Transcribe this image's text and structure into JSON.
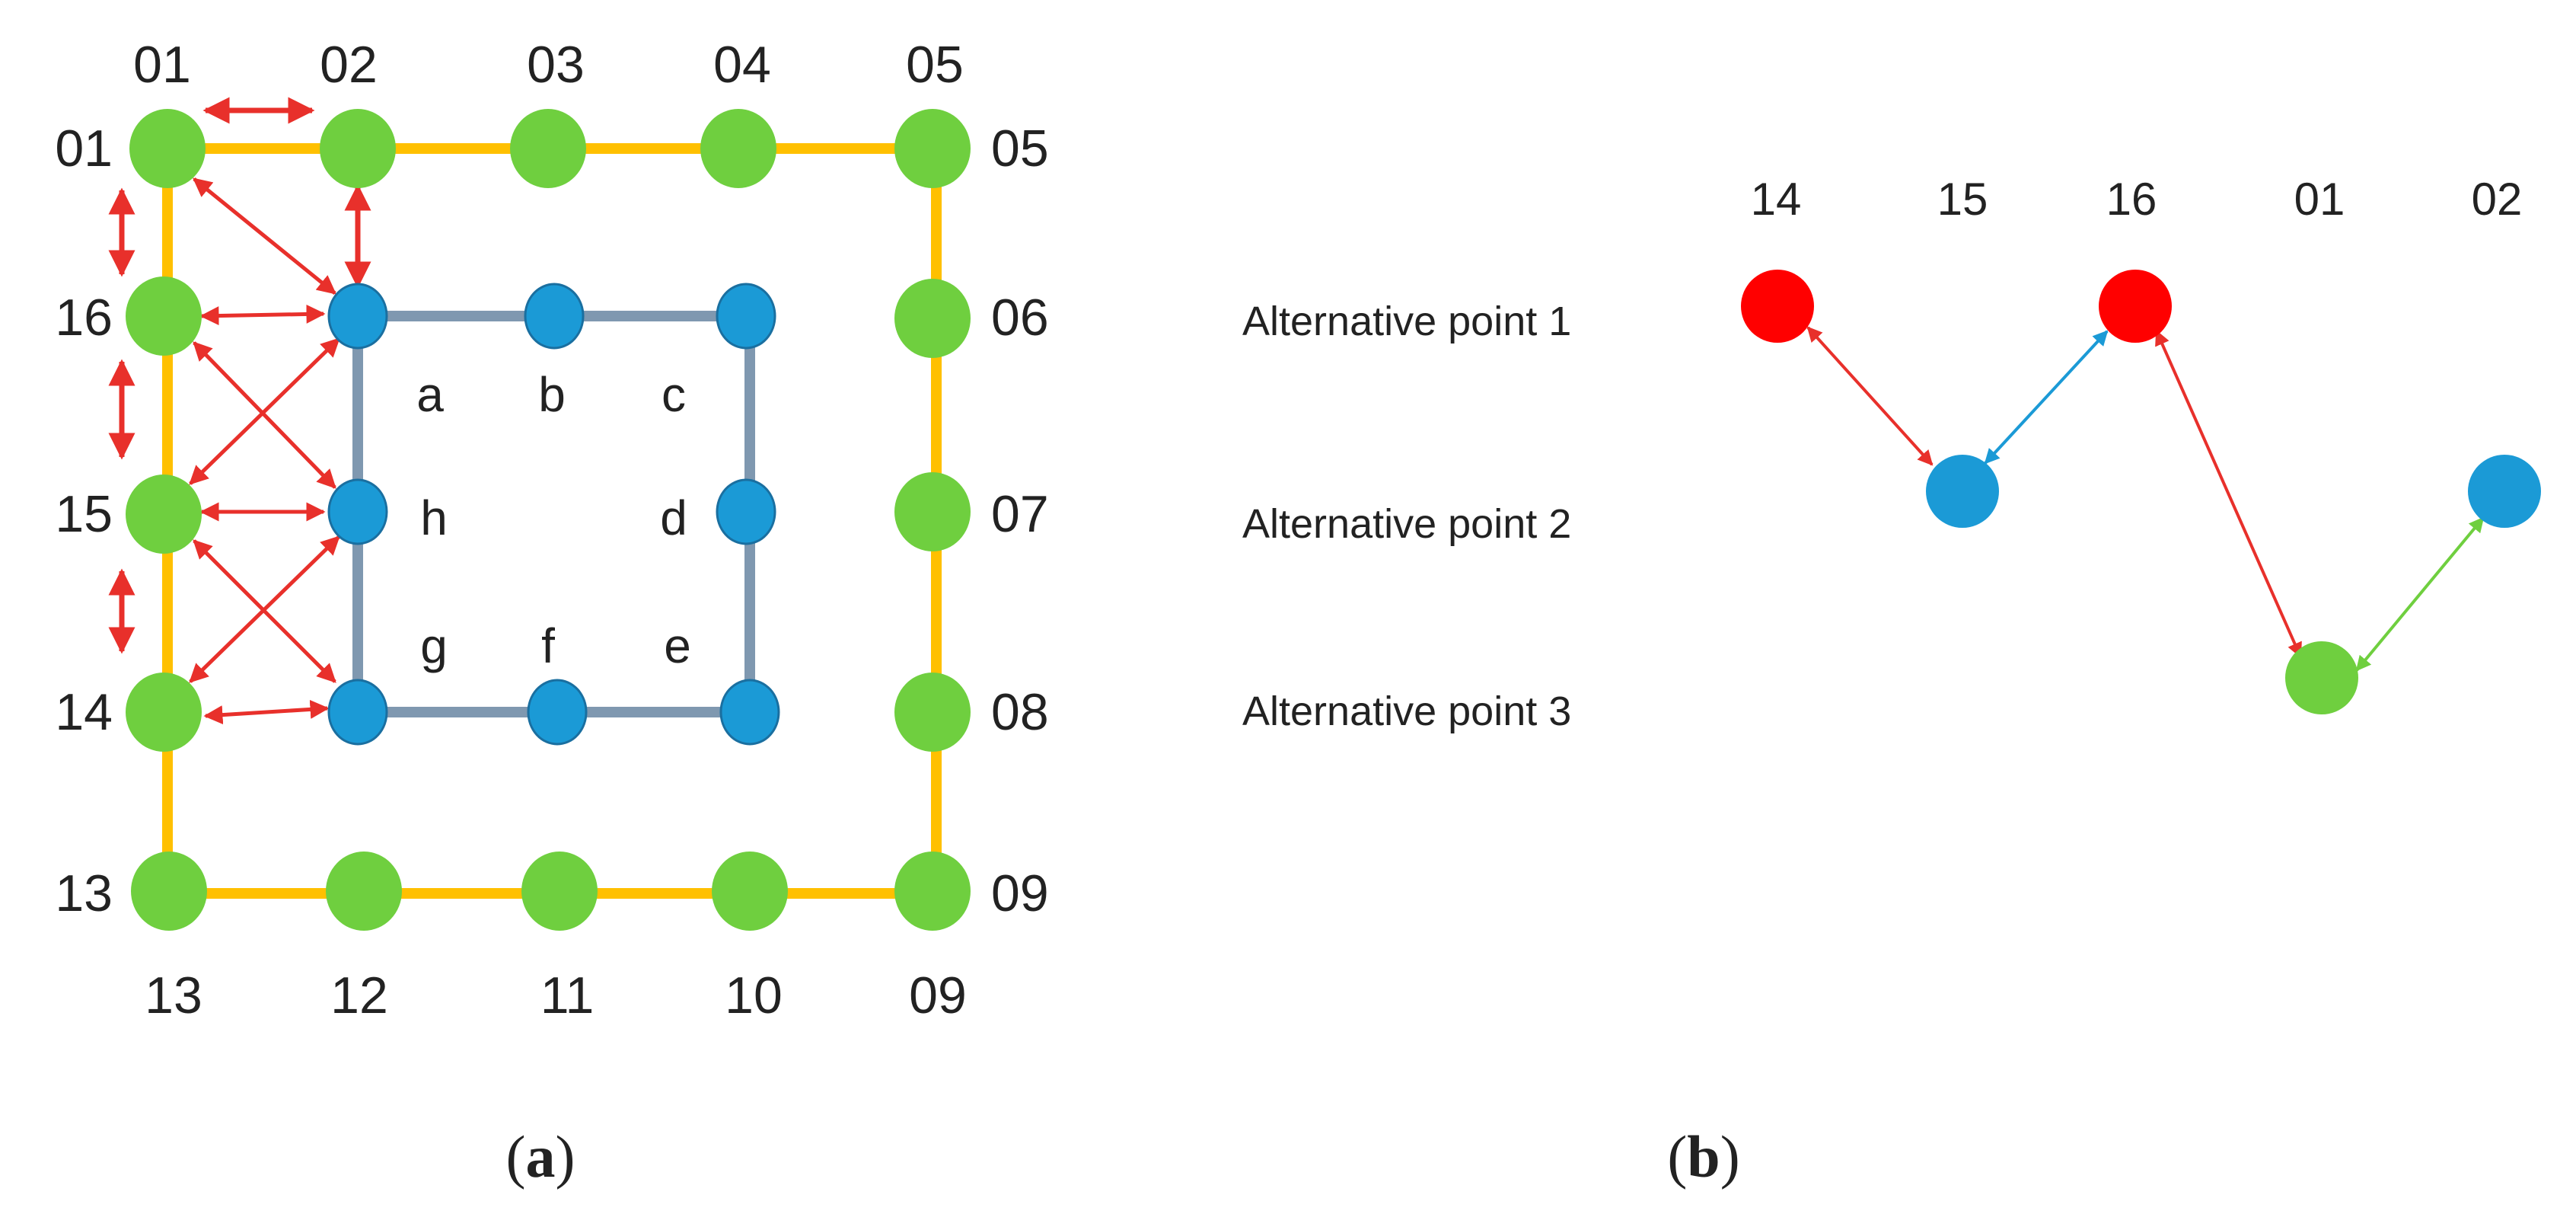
{
  "panel_a": {
    "caption": {
      "open": "(",
      "letter": "a",
      "close": ")"
    },
    "top_labels": [
      "01",
      "02",
      "03",
      "04",
      "05"
    ],
    "left_labels": [
      "01",
      "16",
      "15",
      "14",
      "13"
    ],
    "right_labels": [
      "05",
      "06",
      "07",
      "08",
      "09"
    ],
    "bottom_labels": [
      "13",
      "12",
      "11",
      "10",
      "09"
    ],
    "inner_labels": [
      "a",
      "b",
      "c",
      "d",
      "e",
      "f",
      "g",
      "h"
    ]
  },
  "panel_b": {
    "caption": {
      "open": "(",
      "letter": "b",
      "close": ")"
    },
    "columns": [
      "14",
      "15",
      "16",
      "01",
      "02"
    ],
    "rows": [
      "Alternative point 1",
      "Alternative point 2",
      "Alternative point 3"
    ],
    "path": [
      {
        "column": "14",
        "row": 1,
        "color": "#ff0000"
      },
      {
        "column": "15",
        "row": 2,
        "color": "#1b9ad6"
      },
      {
        "column": "16",
        "row": 1,
        "color": "#ff0000"
      },
      {
        "column": "01",
        "row": 3,
        "color": "#6fcf3f"
      },
      {
        "column": "02",
        "row": 2,
        "color": "#1b9ad6"
      }
    ],
    "link_colors": [
      "#e8302b",
      "#1b9ad6",
      "#e8302b",
      "#6fcf3f"
    ]
  },
  "colors": {
    "outer_node": "#6fcf3f",
    "outer_edge": "#ffc000",
    "inner_node": "#1b9ad6",
    "inner_node_stroke": "#1a6fa0",
    "inner_edge": "#7f98b0",
    "arrow": "#e8302b"
  }
}
